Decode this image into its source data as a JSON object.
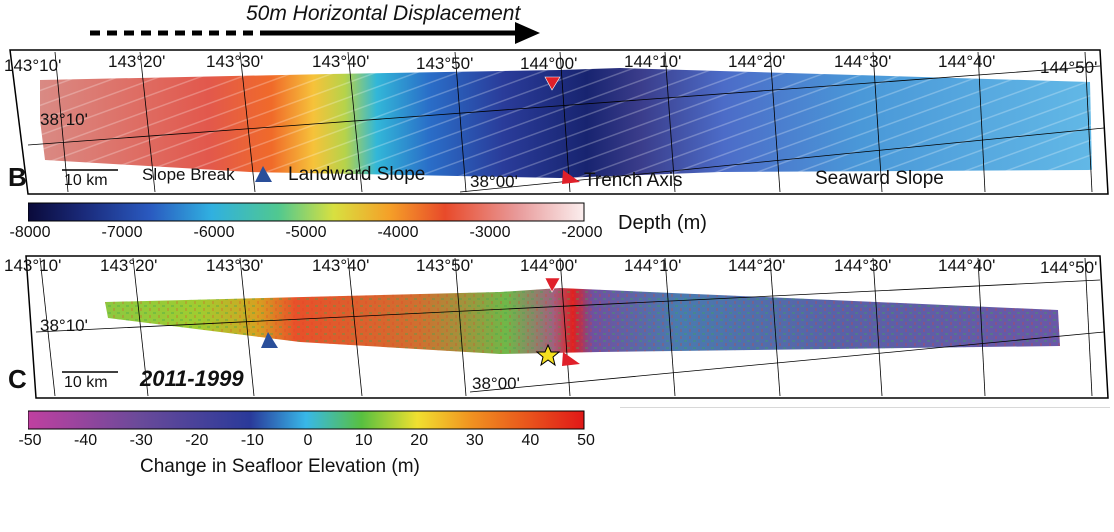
{
  "header": {
    "displacement_label": "50m Horizontal Displacement"
  },
  "panel_b": {
    "letter": "B",
    "lon_labels": [
      "143°10'",
      "143°20'",
      "143°30'",
      "143°40'",
      "143°50'",
      "144°00'",
      "144°10'",
      "144°20'",
      "144°30'",
      "144°40'",
      "144°50'"
    ],
    "lat_labels": [
      "38°10'",
      "38°00'"
    ],
    "scale_label": "10 km",
    "slope_break_label": "Slope Break",
    "landward_label": "Landward Slope",
    "trench_label": "Trench Axis",
    "seaward_label": "Seaward Slope",
    "colors": {
      "blue_marker": "#2a4f9a",
      "red_marker": "#e0202a"
    }
  },
  "depth_colorbar": {
    "title": "Depth (m)",
    "ticks": [
      "-8000",
      "-7000",
      "-6000",
      "-5000",
      "-4000",
      "-3000",
      "-2000"
    ],
    "range": [
      -8000,
      -2000
    ]
  },
  "panel_c": {
    "letter": "C",
    "lon_labels": [
      "143°10'",
      "143°20'",
      "143°30'",
      "143°40'",
      "143°50'",
      "144°00'",
      "144°10'",
      "144°20'",
      "144°30'",
      "144°40'",
      "144°50'"
    ],
    "lat_labels": [
      "38°10'",
      "38°00'"
    ],
    "scale_label": "10 km",
    "period_label": "2011-1999",
    "colors": {
      "star": "#f5e020"
    }
  },
  "change_colorbar": {
    "title": "Change in Seafloor Elevation (m)",
    "ticks": [
      "-50",
      "-40",
      "-30",
      "-20",
      "-10",
      "0",
      "10",
      "20",
      "30",
      "40",
      "50"
    ],
    "range": [
      -50,
      50
    ]
  }
}
